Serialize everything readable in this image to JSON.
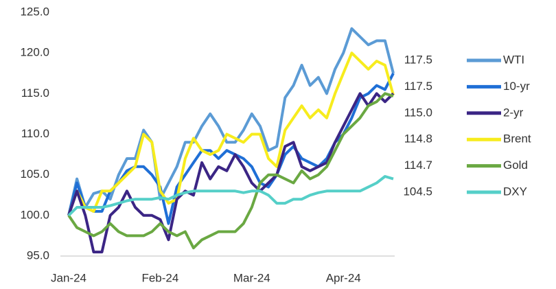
{
  "chart_data": {
    "type": "line",
    "categories": [
      "Jan-24",
      null,
      null,
      null,
      null,
      null,
      null,
      null,
      null,
      null,
      null,
      "Feb-24",
      null,
      null,
      null,
      null,
      null,
      null,
      null,
      null,
      null,
      null,
      "Mar-24",
      null,
      null,
      null,
      null,
      null,
      null,
      null,
      null,
      null,
      null,
      "Apr-24",
      null,
      null,
      null,
      null,
      null,
      null
    ],
    "ylim": [
      95,
      125
    ],
    "yticks": [
      {
        "value": 95,
        "label": "95.0"
      },
      {
        "value": 100,
        "label": "100.0"
      },
      {
        "value": 105,
        "label": "105.0"
      },
      {
        "value": 110,
        "label": "110.0"
      },
      {
        "value": 115,
        "label": "115.0"
      },
      {
        "value": 120,
        "label": "120.0"
      },
      {
        "value": 125,
        "label": "125.0"
      }
    ],
    "grid": false,
    "legend": "right",
    "series": [
      {
        "name": "WTI",
        "color": "#5b9bd5",
        "end_label": "117.5",
        "values": [
          100,
          104.5,
          101,
          102.7,
          103,
          102,
          105,
          107,
          107,
          110.5,
          109,
          102,
          104,
          106,
          109,
          109,
          111,
          112.5,
          111,
          109,
          109,
          110.5,
          112.5,
          111,
          108,
          108.5,
          114.5,
          116,
          118.5,
          116,
          117,
          115,
          118,
          120,
          123,
          122,
          121,
          121.5,
          121.5,
          117.5
        ]
      },
      {
        "name": "10-yr",
        "color": "#1f6fd6",
        "end_label": "117.5",
        "values": [
          100,
          104,
          101,
          100.5,
          100.5,
          103,
          104,
          105.5,
          106,
          106,
          105,
          103.5,
          99,
          103.5,
          105,
          106.5,
          108,
          108,
          107,
          108,
          107.5,
          107,
          106,
          104,
          103.5,
          105,
          107.5,
          108.5,
          107,
          106.5,
          106,
          107,
          109,
          110,
          112,
          114.5,
          115,
          116,
          115.5,
          117.5
        ]
      },
      {
        "name": "2-yr",
        "color": "#3b2585",
        "end_label": "115.0",
        "values": [
          100,
          103,
          100,
          95.5,
          95.5,
          100,
          101,
          103,
          101,
          100,
          100,
          99.5,
          97,
          102,
          103,
          102.5,
          106.5,
          104.5,
          106,
          105.5,
          107.5,
          106,
          104,
          103,
          104,
          105,
          108.5,
          109,
          106,
          105.5,
          106,
          106.5,
          109,
          111,
          113,
          115,
          113.5,
          115,
          114,
          115
        ]
      },
      {
        "name": "Brent",
        "color": "#f7ec1d",
        "end_label": "114.8",
        "values": [
          100,
          103,
          101,
          100.5,
          103,
          103,
          104,
          105,
          106,
          110,
          109,
          103,
          101.5,
          102,
          107,
          109.5,
          108,
          107.5,
          108,
          110,
          109.5,
          109,
          110,
          110,
          107,
          106,
          110.5,
          112,
          113.5,
          112,
          113,
          112,
          115,
          117.5,
          120,
          119,
          118,
          119,
          118.5,
          114.8
        ]
      },
      {
        "name": "Gold",
        "color": "#6aa842",
        "end_label": "114.7",
        "values": [
          100,
          98.5,
          98,
          97.5,
          98,
          99,
          98,
          97.5,
          97.5,
          97.5,
          98,
          99,
          98,
          97.5,
          98,
          96,
          97,
          97.5,
          98,
          98,
          98,
          99,
          101,
          104,
          105,
          105,
          104.5,
          104,
          105.5,
          104.5,
          105,
          106,
          108,
          110,
          111,
          112,
          113.5,
          114,
          115,
          114.7
        ]
      },
      {
        "name": "DXY",
        "color": "#55cfc8",
        "end_label": "104.5",
        "values": [
          100,
          101,
          101,
          101,
          101,
          101.2,
          101.5,
          101.8,
          102,
          102,
          102,
          102.2,
          102,
          102.5,
          102.8,
          103,
          103,
          103,
          103,
          103,
          103,
          102.8,
          103,
          103,
          102.5,
          101.5,
          101.5,
          102,
          102,
          102.5,
          102.8,
          103,
          103,
          103,
          103,
          103,
          103.5,
          104,
          104.8,
          104.5
        ]
      }
    ]
  }
}
